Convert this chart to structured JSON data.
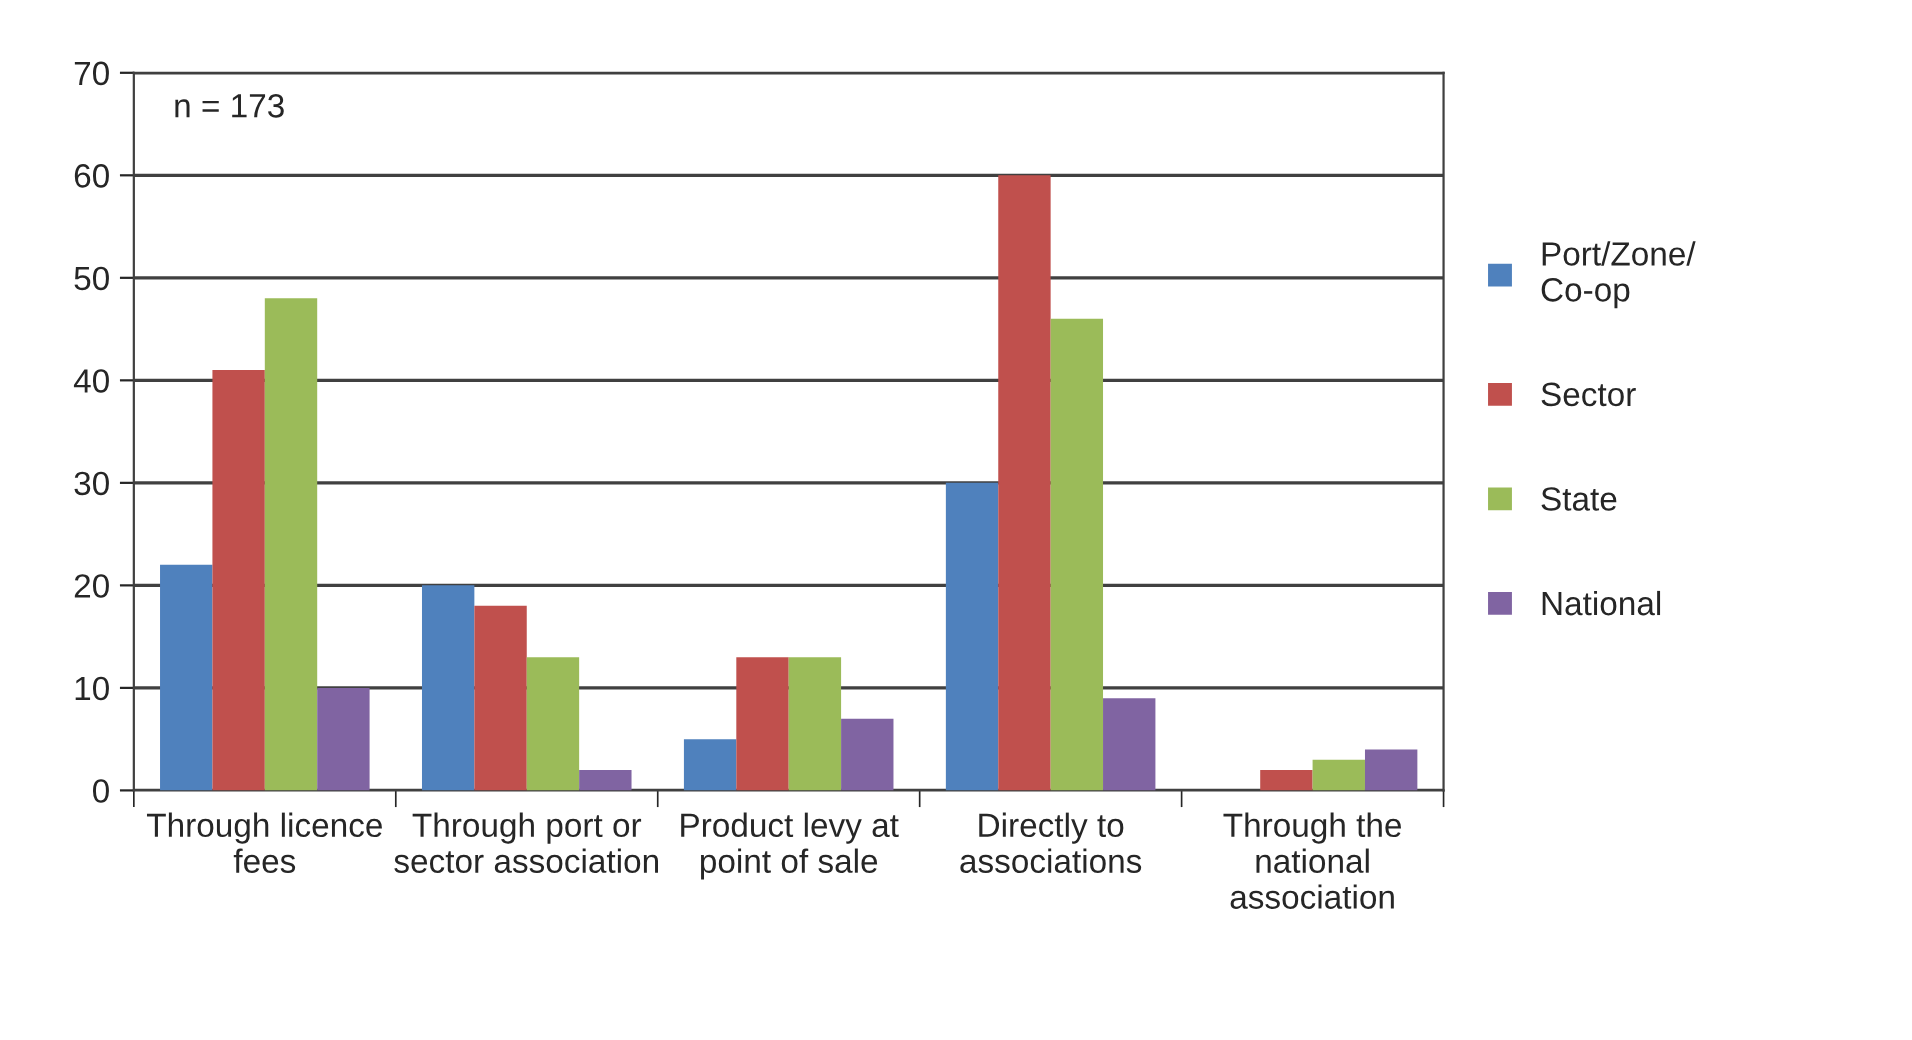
{
  "chart_data": {
    "type": "bar",
    "categories": [
      "Through licence\nfees",
      "Through port or\nsector association",
      "Product levy at\npoint of sale",
      "Directly to\nassociations",
      "Through the\nnational\nassociation"
    ],
    "series": [
      {
        "name": "Port/Zone/\nCo-op",
        "color": "#4f81bd",
        "values": [
          22,
          20,
          5,
          30,
          null
        ]
      },
      {
        "name": "Sector",
        "color": "#c0504d",
        "values": [
          41,
          18,
          13,
          60,
          2
        ]
      },
      {
        "name": "State",
        "color": "#9bbb59",
        "values": [
          48,
          13,
          13,
          46,
          3
        ]
      },
      {
        "name": "National",
        "color": "#8064a2",
        "values": [
          10,
          2,
          7,
          9,
          4
        ]
      }
    ],
    "ylim": [
      0,
      70
    ],
    "yticks": [
      0,
      10,
      20,
      30,
      40,
      50,
      60,
      70
    ],
    "grid": "y",
    "legend": "right",
    "annotations": [
      "n = 173"
    ]
  }
}
